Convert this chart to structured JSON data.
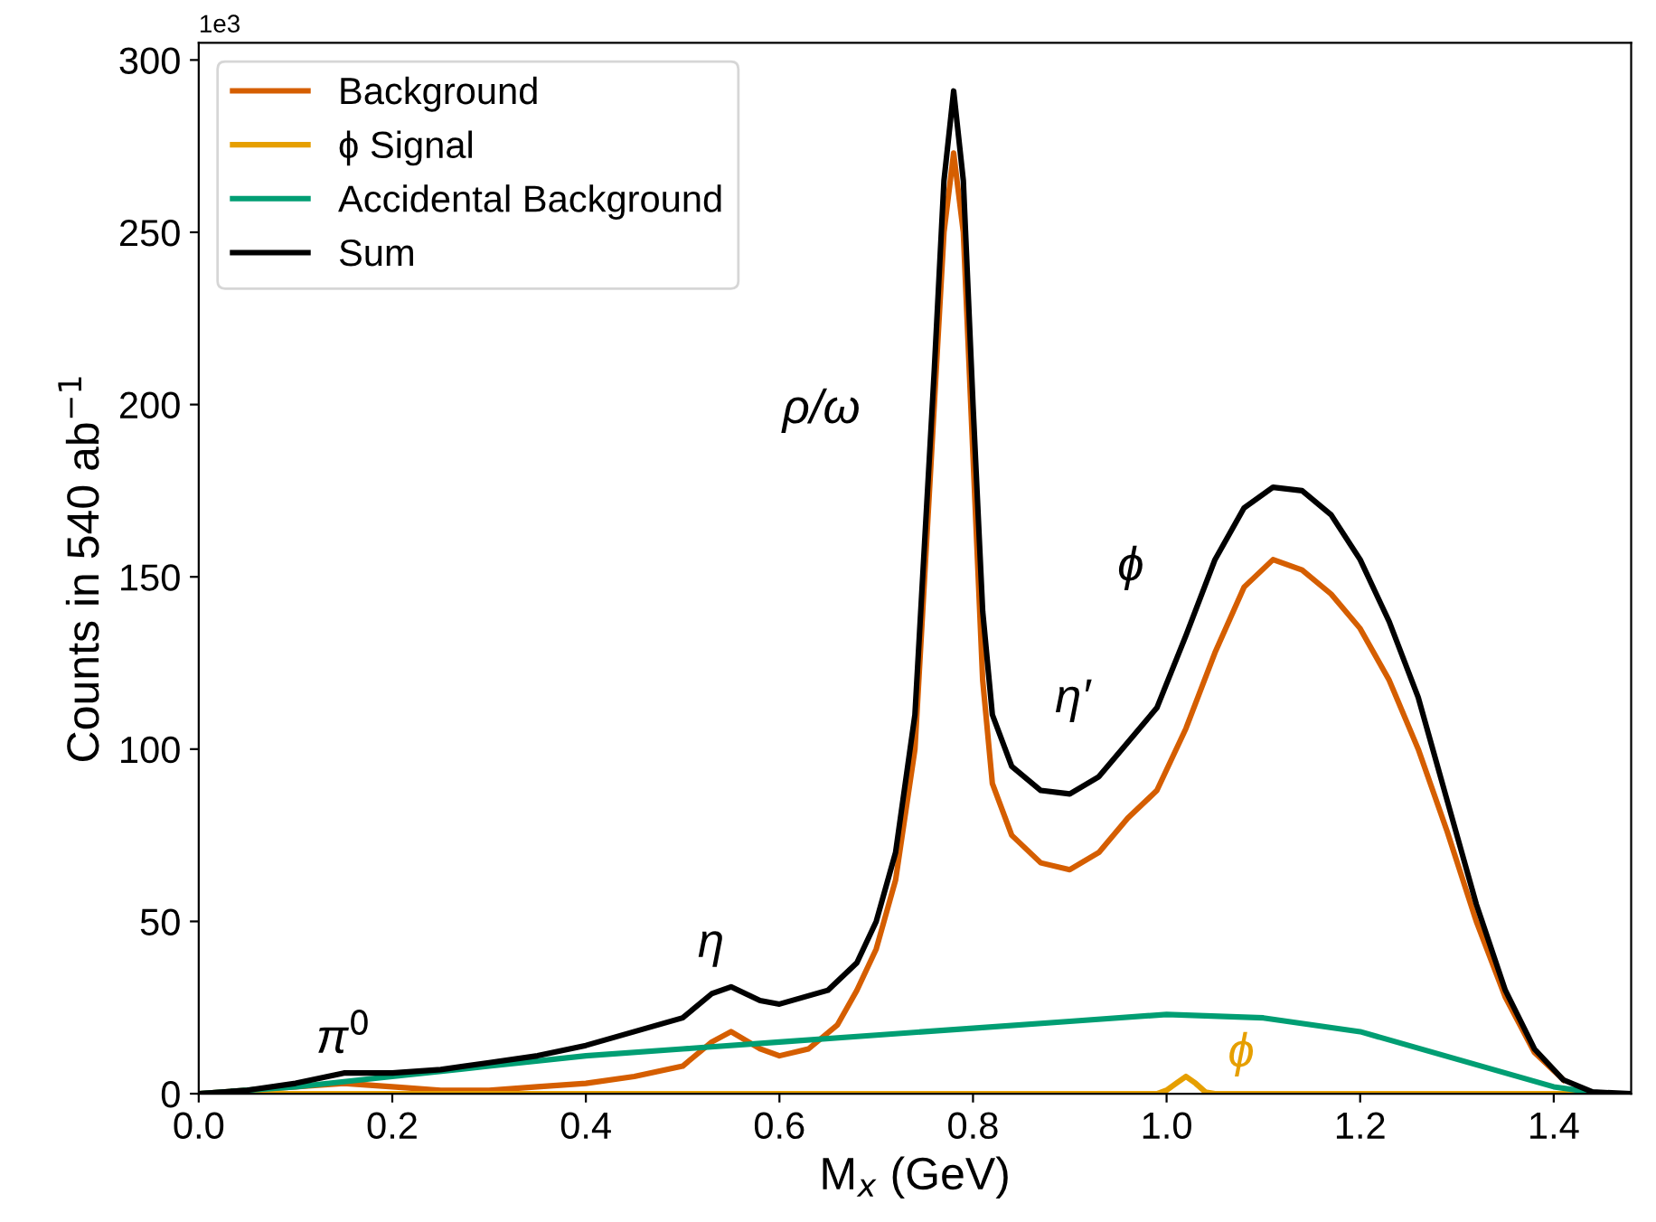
{
  "chart_data": {
    "type": "line",
    "xlabel": "M$_{x}$ (GeV)",
    "ylabel": "Counts in 540 ab$^{−1}$",
    "xlim": [
      0,
      1.48
    ],
    "ylim": [
      0,
      305
    ],
    "xticks": [
      {
        "value": 0,
        "label": "0.0"
      },
      {
        "value": 0.2,
        "label": "0.2"
      },
      {
        "value": 0.4,
        "label": "0.4"
      },
      {
        "value": 0.6,
        "label": "0.6"
      },
      {
        "value": 0.8,
        "label": "0.8"
      },
      {
        "value": 1.0,
        "label": "1.0"
      },
      {
        "value": 1.2,
        "label": "1.2"
      },
      {
        "value": 1.4,
        "label": "1.4"
      }
    ],
    "yticks": [
      0,
      50,
      100,
      150,
      200,
      250,
      300
    ],
    "legend": "top left",
    "grid": false,
    "series": [
      {
        "name": "Background",
        "color": "#d55e00",
        "x": [
          0,
          0.05,
          0.1,
          0.15,
          0.2,
          0.25,
          0.3,
          0.35,
          0.4,
          0.45,
          0.5,
          0.53,
          0.55,
          0.58,
          0.6,
          0.63,
          0.66,
          0.68,
          0.7,
          0.72,
          0.74,
          0.75,
          0.76,
          0.77,
          0.78,
          0.79,
          0.8,
          0.81,
          0.82,
          0.84,
          0.87,
          0.9,
          0.93,
          0.96,
          0.99,
          1.02,
          1.05,
          1.08,
          1.11,
          1.14,
          1.17,
          1.2,
          1.23,
          1.26,
          1.29,
          1.32,
          1.35,
          1.38,
          1.41
        ],
        "values": [
          0,
          1,
          2,
          3,
          2,
          1,
          1,
          2,
          3,
          5,
          8,
          15,
          18,
          13,
          11,
          13,
          20,
          30,
          42,
          62,
          100,
          150,
          200,
          250,
          273,
          250,
          185,
          120,
          90,
          75,
          67,
          65,
          70,
          80,
          88,
          106,
          128,
          147,
          155,
          152,
          145,
          135,
          120,
          100,
          76,
          50,
          28,
          12,
          4
        ]
      },
      {
        "name": "ϕ Signal",
        "color": "#e69f00",
        "x": [
          0,
          0.99,
          1.0,
          1.01,
          1.02,
          1.03,
          1.04,
          1.05,
          1.48
        ],
        "values": [
          0,
          0,
          1,
          3,
          5,
          3,
          0.5,
          0,
          0
        ]
      },
      {
        "name": "Accidental Background",
        "color": "#009e73",
        "x": [
          0,
          0.1,
          0.2,
          0.3,
          0.4,
          0.5,
          0.6,
          0.7,
          0.8,
          0.9,
          1.0,
          1.1,
          1.2,
          1.3,
          1.4,
          1.45,
          1.48
        ],
        "values": [
          0,
          2,
          5,
          8,
          11,
          13,
          15,
          17,
          19,
          21,
          23,
          22,
          18,
          10,
          2,
          0,
          0
        ]
      },
      {
        "name": "Sum",
        "color": "#000000",
        "x": [
          0,
          0.05,
          0.1,
          0.15,
          0.2,
          0.25,
          0.3,
          0.35,
          0.4,
          0.45,
          0.5,
          0.53,
          0.55,
          0.58,
          0.6,
          0.65,
          0.68,
          0.7,
          0.72,
          0.74,
          0.75,
          0.76,
          0.77,
          0.78,
          0.79,
          0.8,
          0.81,
          0.82,
          0.84,
          0.87,
          0.9,
          0.93,
          0.96,
          0.99,
          1.02,
          1.05,
          1.08,
          1.11,
          1.14,
          1.17,
          1.2,
          1.23,
          1.26,
          1.29,
          1.32,
          1.35,
          1.38,
          1.41,
          1.44,
          1.48
        ],
        "values": [
          0,
          1,
          3,
          6,
          6,
          7,
          9,
          11,
          14,
          18,
          22,
          29,
          31,
          27,
          26,
          30,
          38,
          50,
          70,
          110,
          160,
          210,
          265,
          291,
          265,
          200,
          140,
          110,
          95,
          88,
          87,
          92,
          102,
          112,
          133,
          155,
          170,
          176,
          175,
          168,
          155,
          137,
          115,
          85,
          55,
          30,
          13,
          4,
          0.5,
          0
        ]
      }
    ],
    "annotations": [
      "1e3",
      {
        "text": "π$^{0}$",
        "x": 0.15,
        "y": 6
      },
      {
        "text": "η",
        "x": 0.55,
        "y": 31
      },
      {
        "text": "ρ/ω",
        "x": 0.76,
        "y": 210
      },
      {
        "text": "η′",
        "x": 0.96,
        "y": 102
      },
      {
        "text": "ϕ",
        "x": 1.02,
        "y": 133
      },
      {
        "text": "ϕ",
        "x": 1.02,
        "y": 5
      }
    ]
  }
}
